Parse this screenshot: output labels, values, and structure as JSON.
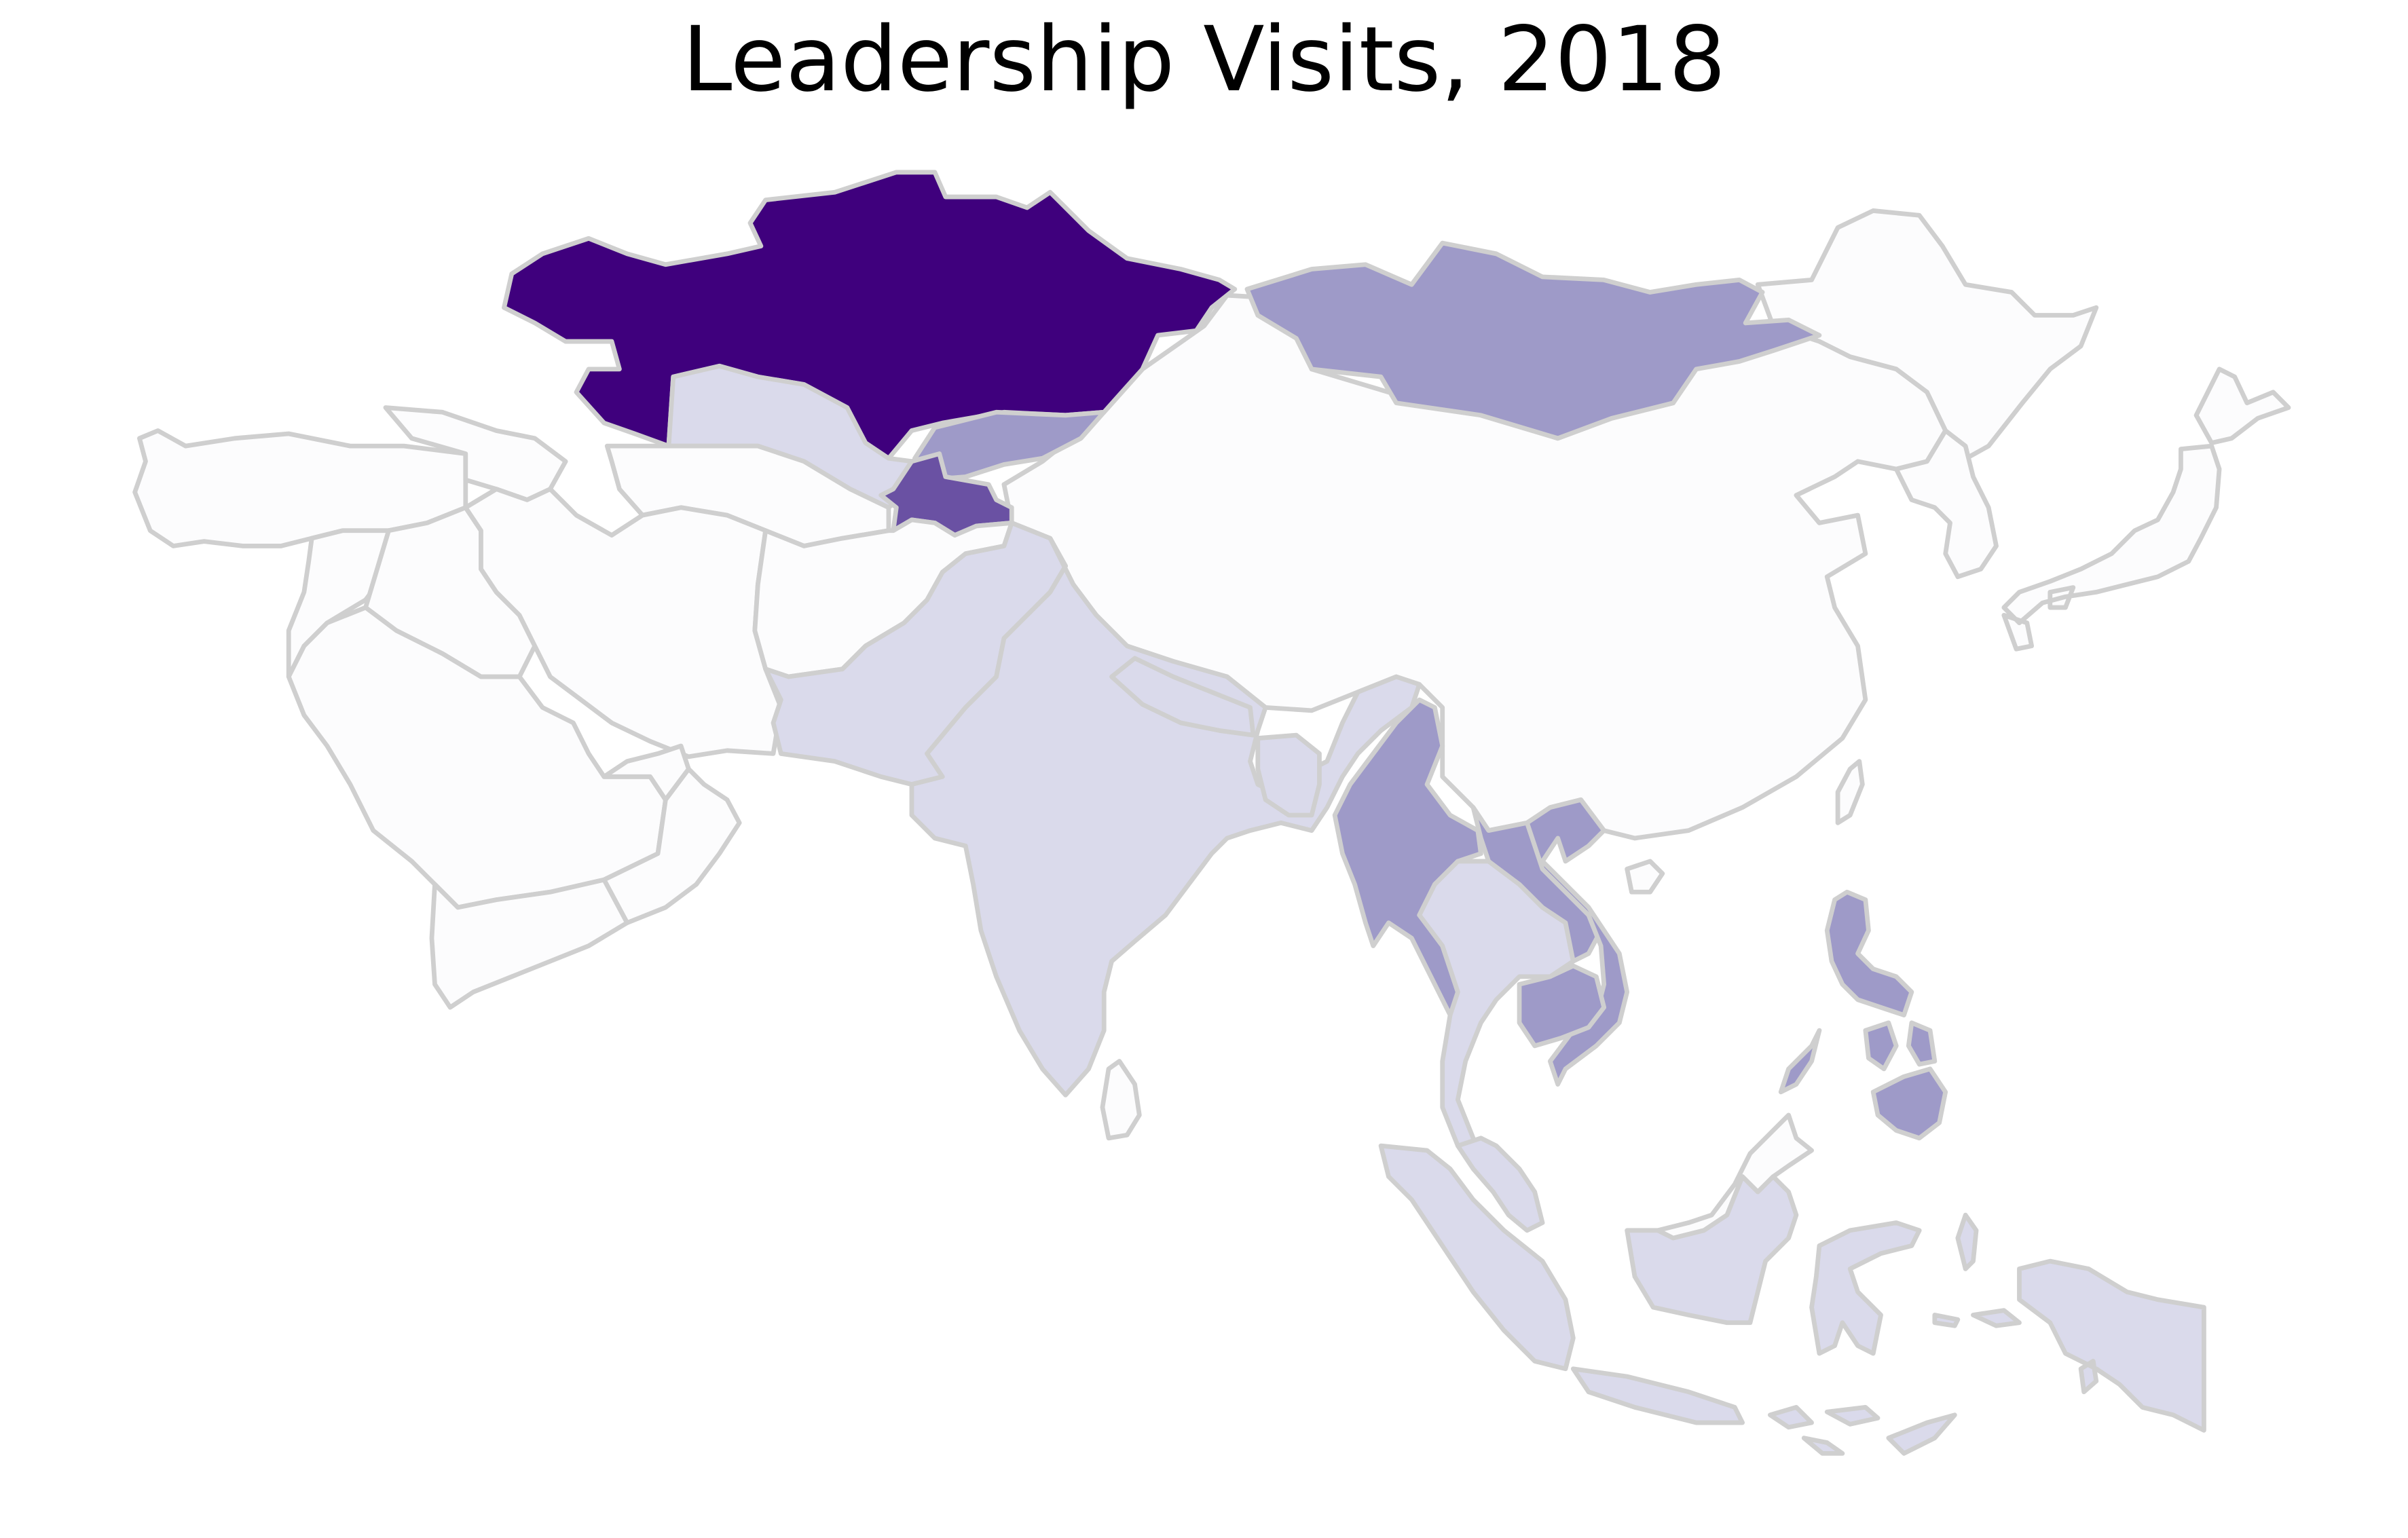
{
  "title": "Leadership Visits, 2018",
  "colors": {
    "level0": "#fcfcfd",
    "level1": "#dadaeb",
    "level2": "#9e9ac8",
    "level3": "#6a51a3",
    "level4": "#3f007d",
    "border": "#cfcfcf",
    "background": "#ffffff"
  },
  "regions": [
    {
      "id": "kazakhstan",
      "level": 4
    },
    {
      "id": "mongolia",
      "level": 2
    },
    {
      "id": "kyrgyzstan",
      "level": 2
    },
    {
      "id": "tajikistan",
      "level": 3
    },
    {
      "id": "uzbekistan",
      "level": 1
    },
    {
      "id": "turkmenistan",
      "level": 0
    },
    {
      "id": "china",
      "level": 0
    },
    {
      "id": "russia-far-east",
      "level": 0
    },
    {
      "id": "korea",
      "level": 0
    },
    {
      "id": "japan",
      "level": 0
    },
    {
      "id": "taiwan",
      "level": 0
    },
    {
      "id": "turkey",
      "level": 0
    },
    {
      "id": "caucasus",
      "level": 0
    },
    {
      "id": "iran",
      "level": 0
    },
    {
      "id": "iraq",
      "level": 0
    },
    {
      "id": "syria",
      "level": 0
    },
    {
      "id": "saudi-arabia",
      "level": 0
    },
    {
      "id": "yemen",
      "level": 0
    },
    {
      "id": "oman",
      "level": 0
    },
    {
      "id": "uae",
      "level": 0
    },
    {
      "id": "afghanistan",
      "level": 0
    },
    {
      "id": "pakistan",
      "level": 1
    },
    {
      "id": "india",
      "level": 1
    },
    {
      "id": "nepal",
      "level": 1
    },
    {
      "id": "bangladesh",
      "level": 1
    },
    {
      "id": "sri-lanka",
      "level": 0
    },
    {
      "id": "myanmar",
      "level": 2
    },
    {
      "id": "thailand",
      "level": 1
    },
    {
      "id": "laos",
      "level": 2
    },
    {
      "id": "vietnam",
      "level": 2
    },
    {
      "id": "cambodia",
      "level": 2
    },
    {
      "id": "malaysia-peninsula",
      "level": 1
    },
    {
      "id": "malaysia-borneo",
      "level": 0
    },
    {
      "id": "philippines",
      "level": 2
    },
    {
      "id": "indonesia",
      "level": 1
    }
  ]
}
